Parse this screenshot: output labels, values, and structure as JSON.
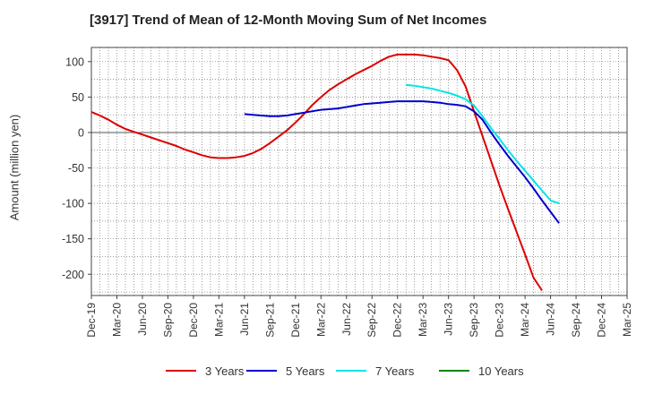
{
  "chart_data": {
    "type": "line",
    "title": "[3917]  Trend of Mean of 12-Month Moving Sum of Net Incomes",
    "xlabel": "",
    "ylabel": "Amount (million yen)",
    "x_ticks": [
      "Dec-19",
      "Mar-20",
      "Jun-20",
      "Sep-20",
      "Dec-20",
      "Mar-21",
      "Jun-21",
      "Sep-21",
      "Dec-21",
      "Mar-22",
      "Jun-22",
      "Sep-22",
      "Dec-22",
      "Mar-23",
      "Jun-23",
      "Sep-23",
      "Dec-23",
      "Mar-24",
      "Jun-24",
      "Sep-24",
      "Dec-24",
      "Mar-25"
    ],
    "y_ticks": [
      100,
      50,
      0,
      -50,
      -100,
      -150,
      -200
    ],
    "ylim": [
      -230,
      120
    ],
    "grid": true,
    "legend_position": "bottom",
    "series": [
      {
        "name": "3 Years",
        "color": "#dd0000",
        "points": [
          [
            0,
            29
          ],
          [
            1,
            24
          ],
          [
            2,
            18
          ],
          [
            3,
            11
          ],
          [
            4,
            5
          ],
          [
            5,
            1
          ],
          [
            6,
            -3
          ],
          [
            7,
            -7
          ],
          [
            8,
            -11
          ],
          [
            9,
            -15
          ],
          [
            10,
            -19
          ],
          [
            11,
            -24
          ],
          [
            12,
            -28
          ],
          [
            13,
            -32
          ],
          [
            14,
            -35
          ],
          [
            15,
            -36
          ],
          [
            16,
            -36
          ],
          [
            17,
            -35
          ],
          [
            18,
            -33
          ],
          [
            19,
            -29
          ],
          [
            20,
            -23
          ],
          [
            21,
            -15
          ],
          [
            22,
            -6
          ],
          [
            23,
            3
          ],
          [
            24,
            14
          ],
          [
            25,
            26
          ],
          [
            26,
            39
          ],
          [
            27,
            50
          ],
          [
            28,
            60
          ],
          [
            29,
            68
          ],
          [
            30,
            75
          ],
          [
            31,
            82
          ],
          [
            32,
            88
          ],
          [
            33,
            94
          ],
          [
            34,
            101
          ],
          [
            35,
            107
          ],
          [
            36,
            110
          ],
          [
            37,
            110
          ],
          [
            38,
            110
          ],
          [
            39,
            109
          ],
          [
            40,
            107
          ],
          [
            41,
            105
          ],
          [
            42,
            102
          ],
          [
            43,
            88
          ],
          [
            44,
            65
          ],
          [
            45,
            30
          ],
          [
            46,
            -5
          ],
          [
            47,
            -40
          ],
          [
            48,
            -75
          ],
          [
            49,
            -108
          ],
          [
            50,
            -140
          ],
          [
            51,
            -172
          ],
          [
            52,
            -205
          ],
          [
            53,
            -223
          ]
        ]
      },
      {
        "name": "5 Years",
        "color": "#0000cc",
        "points": [
          [
            18,
            26
          ],
          [
            19,
            25
          ],
          [
            20,
            24
          ],
          [
            21,
            23
          ],
          [
            22,
            23
          ],
          [
            23,
            24
          ],
          [
            24,
            26
          ],
          [
            25,
            28
          ],
          [
            26,
            30
          ],
          [
            27,
            32
          ],
          [
            28,
            33
          ],
          [
            29,
            34
          ],
          [
            30,
            36
          ],
          [
            31,
            38
          ],
          [
            32,
            40
          ],
          [
            33,
            41
          ],
          [
            34,
            42
          ],
          [
            35,
            43
          ],
          [
            36,
            44
          ],
          [
            37,
            44
          ],
          [
            38,
            44
          ],
          [
            39,
            44
          ],
          [
            40,
            43
          ],
          [
            41,
            42
          ],
          [
            42,
            40
          ],
          [
            43,
            39
          ],
          [
            44,
            37
          ],
          [
            45,
            30
          ],
          [
            46,
            18
          ],
          [
            47,
            0
          ],
          [
            48,
            -17
          ],
          [
            49,
            -33
          ],
          [
            50,
            -48
          ],
          [
            51,
            -63
          ],
          [
            52,
            -79
          ],
          [
            53,
            -96
          ],
          [
            54,
            -112
          ],
          [
            55,
            -128
          ]
        ]
      },
      {
        "name": "7 Years",
        "color": "#00e5e5",
        "points": [
          [
            37,
            67
          ],
          [
            38,
            66
          ],
          [
            39,
            64
          ],
          [
            40,
            62
          ],
          [
            41,
            59
          ],
          [
            42,
            56
          ],
          [
            43,
            52
          ],
          [
            44,
            47
          ],
          [
            45,
            38
          ],
          [
            46,
            23
          ],
          [
            47,
            6
          ],
          [
            48,
            -9
          ],
          [
            49,
            -25
          ],
          [
            50,
            -40
          ],
          [
            51,
            -54
          ],
          [
            52,
            -68
          ],
          [
            53,
            -82
          ],
          [
            54,
            -96
          ],
          [
            55,
            -100
          ]
        ]
      },
      {
        "name": "10 Years",
        "color": "#008800",
        "points": []
      }
    ]
  }
}
